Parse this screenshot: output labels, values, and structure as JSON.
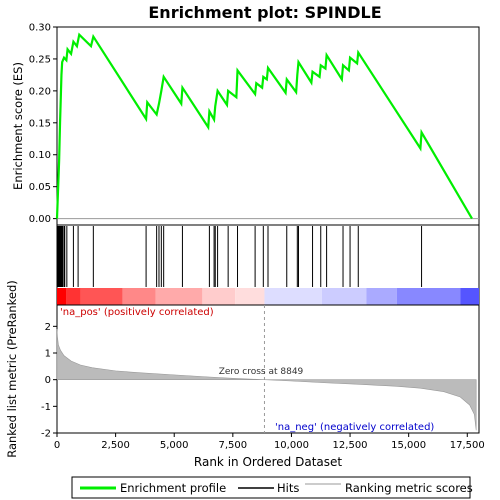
{
  "chart_data": {
    "type": "line",
    "title": "Enrichment plot: SPINDLE",
    "es_panel": {
      "ylabel": "Enrichment score (ES)",
      "ylim": [
        -0.01,
        0.3
      ],
      "yticks": [
        0.0,
        0.05,
        0.1,
        0.15,
        0.2,
        0.25,
        0.3
      ],
      "ytick_labels": [
        "0.00",
        "0.05",
        "0.10",
        "0.15",
        "0.20",
        "0.25",
        "0.30"
      ],
      "series": [
        {
          "name": "Enrichment profile",
          "color": "#00ee00",
          "points": [
            [
              0,
              0.0
            ],
            [
              30,
              0.03
            ],
            [
              60,
              0.06
            ],
            [
              90,
              0.09
            ],
            [
              110,
              0.12
            ],
            [
              130,
              0.15
            ],
            [
              150,
              0.175
            ],
            [
              170,
              0.2
            ],
            [
              190,
              0.225
            ],
            [
              220,
              0.245
            ],
            [
              300,
              0.252
            ],
            [
              400,
              0.248
            ],
            [
              450,
              0.265
            ],
            [
              600,
              0.258
            ],
            [
              700,
              0.277
            ],
            [
              850,
              0.27
            ],
            [
              950,
              0.288
            ],
            [
              1450,
              0.27
            ],
            [
              1550,
              0.285
            ],
            [
              3800,
              0.156
            ],
            [
              3850,
              0.182
            ],
            [
              4250,
              0.163
            ],
            [
              4350,
              0.18
            ],
            [
              4450,
              0.2
            ],
            [
              4550,
              0.222
            ],
            [
              5300,
              0.18
            ],
            [
              5350,
              0.205
            ],
            [
              6450,
              0.143
            ],
            [
              6500,
              0.168
            ],
            [
              6700,
              0.155
            ],
            [
              6750,
              0.176
            ],
            [
              6850,
              0.2
            ],
            [
              7250,
              0.178
            ],
            [
              7300,
              0.2
            ],
            [
              7650,
              0.19
            ],
            [
              7700,
              0.232
            ],
            [
              8450,
              0.195
            ],
            [
              8500,
              0.212
            ],
            [
              8750,
              0.205
            ],
            [
              8800,
              0.222
            ],
            [
              8950,
              0.218
            ],
            [
              9000,
              0.236
            ],
            [
              9750,
              0.197
            ],
            [
              9800,
              0.218
            ],
            [
              10200,
              0.198
            ],
            [
              10250,
              0.225
            ],
            [
              10300,
              0.245
            ],
            [
              10850,
              0.213
            ],
            [
              10900,
              0.23
            ],
            [
              11200,
              0.222
            ],
            [
              11250,
              0.24
            ],
            [
              11450,
              0.235
            ],
            [
              11500,
              0.256
            ],
            [
              12150,
              0.218
            ],
            [
              12200,
              0.24
            ],
            [
              12450,
              0.232
            ],
            [
              12500,
              0.252
            ],
            [
              12800,
              0.243
            ],
            [
              12850,
              0.26
            ],
            [
              15500,
              0.11
            ],
            [
              15550,
              0.135
            ],
            [
              17700,
              0.0
            ]
          ]
        }
      ]
    },
    "hits_panel": {
      "name": "Hits",
      "hit_ranks": [
        10,
        20,
        30,
        40,
        50,
        60,
        70,
        80,
        90,
        100,
        110,
        120,
        130,
        140,
        150,
        160,
        170,
        180,
        190,
        200,
        210,
        220,
        230,
        240,
        250,
        310,
        330,
        420,
        700,
        900,
        1550,
        3800,
        4250,
        4350,
        4450,
        4550,
        5350,
        6500,
        6700,
        6750,
        6850,
        7300,
        7700,
        8450,
        8800,
        9000,
        9800,
        10250,
        10300,
        10900,
        11250,
        11500,
        12200,
        12500,
        12850,
        15550
      ],
      "colorbar_stops": [
        "#ff0000",
        "#ff3333",
        "#ff5555",
        "#ff8888",
        "#ffaaaa",
        "#ffcccc",
        "#ffdddd",
        "#ddddff",
        "#ccccff",
        "#aaaaff",
        "#8888ff",
        "#5555ff",
        "#2222ee"
      ],
      "colorbar_breaks": [
        0,
        400,
        1000,
        2800,
        4200,
        6200,
        7600,
        8849,
        11300,
        13200,
        14500,
        17200,
        18000
      ]
    },
    "metric_panel": {
      "name": "Ranking metric scores",
      "ylabel": "Ranked list metric (PreRanked)",
      "xlabel": "Rank in Ordered Dataset",
      "ylim": [
        -2.0,
        2.8
      ],
      "yticks": [
        -2,
        -1,
        0,
        1,
        2
      ],
      "xlim": [
        0,
        18000
      ],
      "xticks": [
        0,
        2500,
        5000,
        7500,
        10000,
        12500,
        15000,
        17500
      ],
      "xtick_labels": [
        "0",
        "2,500",
        "5,000",
        "7,500",
        "10,000",
        "12,500",
        "15,000",
        "17,500"
      ],
      "curve": [
        [
          0,
          1.9
        ],
        [
          20,
          1.6
        ],
        [
          60,
          1.3
        ],
        [
          150,
          1.1
        ],
        [
          300,
          0.9
        ],
        [
          600,
          0.7
        ],
        [
          1000,
          0.55
        ],
        [
          1500,
          0.45
        ],
        [
          2500,
          0.33
        ],
        [
          3500,
          0.26
        ],
        [
          5000,
          0.18
        ],
        [
          6500,
          0.1
        ],
        [
          7500,
          0.05
        ],
        [
          8849,
          0.0
        ],
        [
          10000,
          -0.05
        ],
        [
          11500,
          -0.12
        ],
        [
          13000,
          -0.18
        ],
        [
          14500,
          -0.25
        ],
        [
          15500,
          -0.32
        ],
        [
          16500,
          -0.45
        ],
        [
          17200,
          -0.65
        ],
        [
          17600,
          -0.95
        ],
        [
          17800,
          -1.3
        ],
        [
          17880,
          -1.9
        ]
      ],
      "zero_cross_rank": 8849,
      "zero_cross_label": "Zero cross at 8849",
      "pos_label": "'na_pos' (positively correlated)",
      "neg_label": "'na_neg' (negatively correlated)"
    },
    "legend": {
      "placement": "bottom",
      "items": [
        {
          "label": "Enrichment profile",
          "color": "#00ee00"
        },
        {
          "label": "Hits",
          "color": "#000000"
        },
        {
          "label": "Ranking metric scores",
          "color": "#bbbbbb"
        }
      ]
    }
  }
}
